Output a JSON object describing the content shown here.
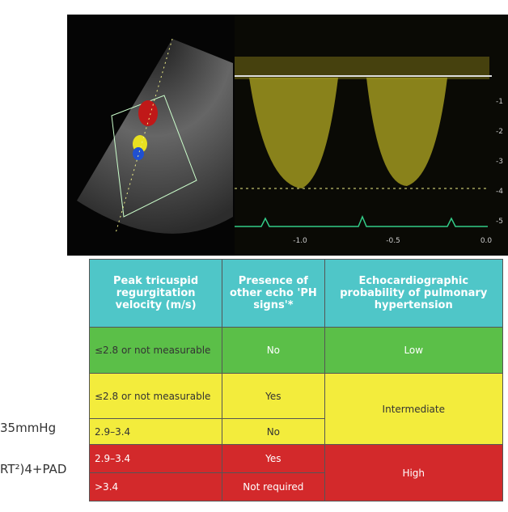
{
  "side_text": [
    "35mmHg",
    "RT²)4+PAD"
  ],
  "echo": {
    "x_labels": [
      "-1.0",
      "-0.5",
      "0.0"
    ],
    "y_labels": [
      "-1",
      "-2",
      "-3",
      "-4",
      "-5"
    ]
  },
  "table": {
    "header": [
      "Peak tricuspid regurgitation velocity (m/s)",
      "Presence of other echo 'PH signs'*",
      "Echocardiographic probability of pulmonary hypertension"
    ],
    "rows": [
      [
        "≤2.8 or not measurable",
        "No",
        "Low"
      ],
      [
        "≤2.8 or not measurable",
        "Yes",
        "Intermediate"
      ],
      [
        "2.9–3.4",
        "No"
      ],
      [
        "2.9–3.4",
        "Yes",
        "High"
      ],
      [
        ">3.4",
        "Not required"
      ]
    ]
  }
}
